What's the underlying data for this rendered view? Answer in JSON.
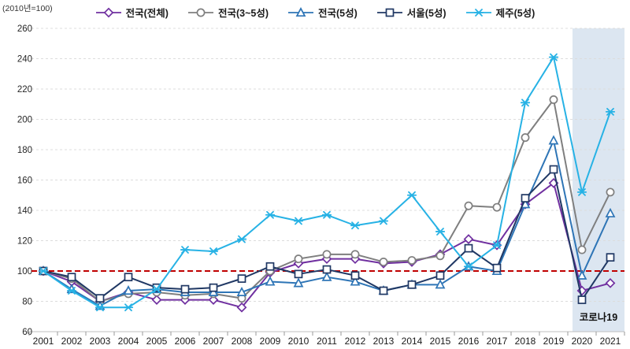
{
  "header": {
    "unit_label": "(2010년=100)"
  },
  "chart_data": {
    "type": "line",
    "title": "",
    "xlabel": "",
    "ylabel": "(2010년=100)",
    "ylim": [
      60,
      260
    ],
    "ytick_step": 20,
    "grid": true,
    "legend_position": "top",
    "x": [
      "2001",
      "2002",
      "2003",
      "2004",
      "2005",
      "2006",
      "2007",
      "2008",
      "2009",
      "2010",
      "2011",
      "2012",
      "2013",
      "2014",
      "2015",
      "2016",
      "2017",
      "2018",
      "2019",
      "2020",
      "2021"
    ],
    "series": [
      {
        "name": "전국(전체)",
        "color": "#7030a0",
        "marker": "diamond",
        "values": [
          100,
          93,
          80,
          86,
          81,
          81,
          81,
          76,
          99,
          105,
          108,
          108,
          105,
          106,
          111,
          121,
          117,
          144,
          158,
          87,
          92
        ]
      },
      {
        "name": "전국(3~5성)",
        "color": "#7f7f7f",
        "marker": "circle",
        "values": [
          100,
          95,
          80,
          85,
          86,
          84,
          85,
          82,
          100,
          108,
          111,
          111,
          106,
          107,
          110,
          143,
          142,
          188,
          213,
          114,
          152
        ]
      },
      {
        "name": "전국(5성)",
        "color": "#2e75b6",
        "marker": "triangle",
        "values": [
          100,
          88,
          77,
          87,
          88,
          86,
          86,
          86,
          93,
          92,
          96,
          93,
          87,
          91,
          91,
          103,
          100,
          144,
          186,
          97,
          138
        ]
      },
      {
        "name": "서울(5성)",
        "color": "#203864",
        "marker": "square",
        "values": [
          100,
          96,
          82,
          96,
          89,
          88,
          89,
          95,
          103,
          98,
          101,
          97,
          87,
          91,
          97,
          115,
          102,
          148,
          167,
          81,
          109
        ]
      },
      {
        "name": "제주(5성)",
        "color": "#27b2e5",
        "marker": "star",
        "values": [
          100,
          87,
          76,
          76,
          88,
          114,
          113,
          121,
          137,
          133,
          137,
          130,
          133,
          150,
          126,
          103,
          117,
          211,
          241,
          152,
          205
        ]
      }
    ],
    "ref_line": {
      "value": 100,
      "color": "#c00000",
      "style": "dashed"
    },
    "highlight_region": {
      "label": "코로나19",
      "x_start": "2020",
      "x_end": "2021",
      "color": "#dce6f1"
    }
  }
}
